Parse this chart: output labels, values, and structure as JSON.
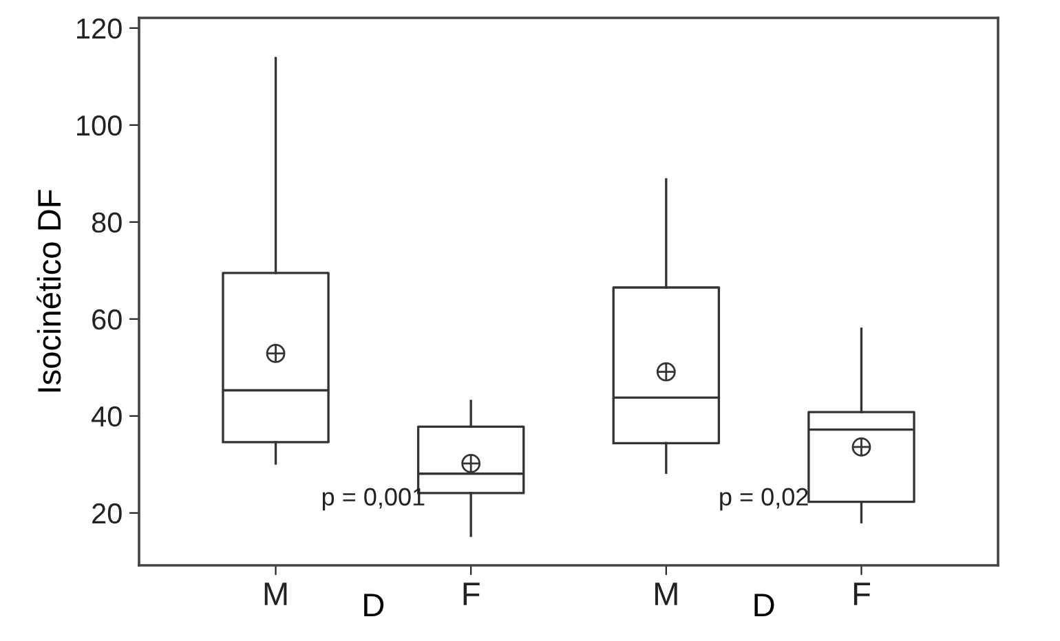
{
  "chart_data": {
    "type": "box",
    "ylabel": "Isocinético DF",
    "categories": [
      "M",
      "F",
      "M",
      "F"
    ],
    "boxes": [
      {
        "low": 30.2,
        "q1": 34.6,
        "median": 45.3,
        "q3": 69.5,
        "high": 113.8,
        "mean": 52.9
      },
      {
        "low": 15.3,
        "q1": 24.1,
        "median": 28.1,
        "q3": 37.8,
        "high": 43.1,
        "mean": 30.2
      },
      {
        "low": 28.3,
        "q1": 34.4,
        "median": 43.8,
        "q3": 66.5,
        "high": 88.8,
        "mean": 49.1
      },
      {
        "low": 18.1,
        "q1": 22.3,
        "median": 37.2,
        "q3": 40.8,
        "high": 58,
        "mean": 33.6
      }
    ],
    "ylim": [
      9.2,
      122.1
    ],
    "yticks": [
      20,
      40,
      60,
      80,
      100,
      120
    ],
    "grid": false,
    "annotations": [
      "p = 0,001",
      "p = 0,02",
      "D",
      "D"
    ]
  }
}
